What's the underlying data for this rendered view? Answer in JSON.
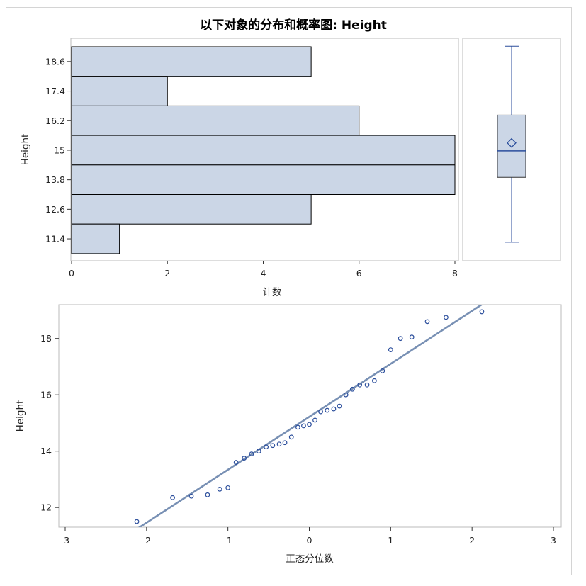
{
  "title": "以下对象的分布和概率图: Height",
  "colors": {
    "bar_fill": "#cbd6e6",
    "bar_stroke": "#000000",
    "box_stroke": "#2b4e9c",
    "line": "#7890b4",
    "point": "#2b4e9c"
  },
  "chart_data": [
    {
      "type": "bar",
      "orientation": "horizontal",
      "title": "以下对象的分布和概率图: Height",
      "categories": [
        "18.6",
        "17.4",
        "16.2",
        "15",
        "13.8",
        "12.6",
        "11.4"
      ],
      "values": [
        5,
        2,
        6,
        8,
        8,
        5,
        1
      ],
      "xlabel": "计数",
      "ylabel": "Height",
      "xlim": [
        0,
        8
      ],
      "xticks": [
        "0",
        "2",
        "4",
        "6",
        "8"
      ]
    },
    {
      "type": "box",
      "variable": "Height",
      "min": 11.5,
      "q1": 13.95,
      "median": 14.95,
      "q3": 16.3,
      "max": 18.9,
      "mean": 15.25,
      "ylim": [
        10.8,
        19.2
      ]
    },
    {
      "type": "scatter",
      "xlabel": "正态分位数",
      "ylabel": "Height",
      "xlim": [
        -3,
        3
      ],
      "ylim": [
        11.3,
        19.2
      ],
      "xticks": [
        "-3",
        "-2",
        "-1",
        "0",
        "1",
        "2",
        "3"
      ],
      "yticks": [
        "12",
        "14",
        "16",
        "18"
      ],
      "points": [
        [
          -2.12,
          11.5
        ],
        [
          -1.68,
          12.35
        ],
        [
          -1.45,
          12.4
        ],
        [
          -1.25,
          12.45
        ],
        [
          -1.1,
          12.65
        ],
        [
          -1.0,
          12.7
        ],
        [
          -0.9,
          13.6
        ],
        [
          -0.8,
          13.75
        ],
        [
          -0.71,
          13.9
        ],
        [
          -0.62,
          14.0
        ],
        [
          -0.53,
          14.15
        ],
        [
          -0.45,
          14.2
        ],
        [
          -0.37,
          14.25
        ],
        [
          -0.3,
          14.3
        ],
        [
          -0.22,
          14.5
        ],
        [
          -0.14,
          14.85
        ],
        [
          -0.07,
          14.9
        ],
        [
          0.0,
          14.95
        ],
        [
          0.07,
          15.1
        ],
        [
          0.14,
          15.4
        ],
        [
          0.22,
          15.45
        ],
        [
          0.3,
          15.5
        ],
        [
          0.37,
          15.6
        ],
        [
          0.45,
          16.0
        ],
        [
          0.53,
          16.2
        ],
        [
          0.62,
          16.35
        ],
        [
          0.71,
          16.35
        ],
        [
          0.8,
          16.5
        ],
        [
          0.9,
          16.85
        ],
        [
          1.0,
          17.6
        ],
        [
          1.12,
          18.0
        ],
        [
          1.26,
          18.05
        ],
        [
          1.45,
          18.6
        ],
        [
          1.68,
          18.75
        ],
        [
          2.12,
          18.95
        ]
      ],
      "line": {
        "intercept": 15.22,
        "slope": 1.88
      }
    }
  ]
}
